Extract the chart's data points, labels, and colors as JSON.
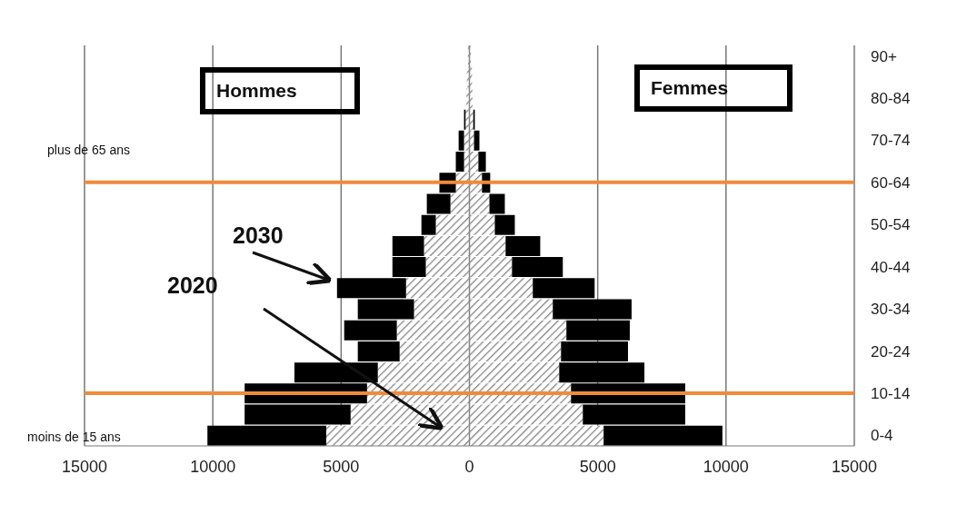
{
  "chart_data": {
    "type": "bar",
    "orientation": "horizontal",
    "stacked": true,
    "categories": [
      "90+",
      null,
      "80-84",
      null,
      "70-74",
      null,
      "60-64",
      null,
      "50-54",
      null,
      "40-44",
      null,
      "30-34",
      null,
      "20-24",
      null,
      "10-14",
      null,
      "0-4"
    ],
    "series": [
      {
        "color": "#808080",
        "values": [
          -60,
          -100,
          -120,
          -150,
          -210,
          -210,
          -530,
          -740,
          -1310,
          -1770,
          -1700,
          -2470,
          -2160,
          -2830,
          -2720,
          -3570,
          -3990,
          -4630,
          -5580
        ]
      },
      {
        "color": "#808080",
        "values": [
          60,
          100,
          120,
          150,
          180,
          350,
          490,
          780,
          990,
          1410,
          1660,
          2470,
          3250,
          3780,
          3570,
          3500,
          3960,
          4420,
          5230
        ]
      },
      {
        "color": "#000000",
        "values": [
          null,
          null,
          null,
          -60,
          -210,
          -320,
          -640,
          -920,
          -560,
          -1230,
          -1300,
          -2690,
          -2190,
          -2050,
          -1630,
          -3250,
          -4770,
          -4130,
          -4630
        ]
      },
      {
        "color": "#000000",
        "values": [
          null,
          null,
          null,
          60,
          210,
          290,
          320,
          600,
          780,
          1350,
          1980,
          2410,
          3070,
          2470,
          2610,
          3320,
          4450,
          3990,
          4630
        ]
      }
    ],
    "xlim": [
      -15000,
      15000
    ],
    "xticks": [
      {
        "value": -15000,
        "label": "15000"
      },
      {
        "value": -10000,
        "label": "10000"
      },
      {
        "value": -5000,
        "label": "5000"
      },
      0,
      5000,
      10000,
      15000
    ],
    "grid": "x",
    "ref_lines": [
      {
        "axis": "y",
        "value": "60-64",
        "color": "#f08a3c"
      },
      {
        "axis": "y",
        "value": "10-14",
        "color": "#f08a3c"
      }
    ],
    "annotations": [
      "Hommes",
      "Femmes",
      "2030",
      "2020",
      "plus de 65 ans",
      "moins de 15 ans"
    ]
  }
}
